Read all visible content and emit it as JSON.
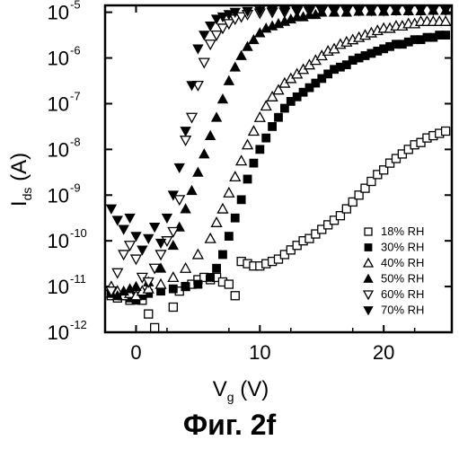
{
  "caption": "Фиг. 2f",
  "chart_data": {
    "type": "scatter",
    "title": "",
    "xlabel": "V",
    "xlabel_sub": "g",
    "xlabel_unit": " (V)",
    "ylabel": "I",
    "ylabel_sub": "ds",
    "ylabel_unit": " (A)",
    "xlim": [
      -2.5,
      25.5
    ],
    "ylim_log10": [
      -12,
      -4.85
    ],
    "y_scale": "log",
    "x_ticks": [
      0,
      10,
      20
    ],
    "x_tick_labels": [
      "0",
      "10",
      "20"
    ],
    "y_tick_exponents": [
      -5,
      -6,
      -7,
      -8,
      -9,
      -10,
      -11,
      -12
    ],
    "y_tick_labels": [
      {
        "base": "10",
        "exp": "-5"
      },
      {
        "base": "10",
        "exp": "-6"
      },
      {
        "base": "10",
        "exp": "-7"
      },
      {
        "base": "10",
        "exp": "-8"
      },
      {
        "base": "10",
        "exp": "-9"
      },
      {
        "base": "10",
        "exp": "-10"
      },
      {
        "base": "10",
        "exp": "-11"
      },
      {
        "base": "10",
        "exp": "-12"
      }
    ],
    "legend_position": "bottom-right",
    "series": [
      {
        "name": "18% RH",
        "marker": "square-open",
        "points": [
          [
            -2,
            -11.2
          ],
          [
            -1.5,
            -11.25
          ],
          [
            -1,
            -11.2
          ],
          [
            -0.5,
            -11.3
          ],
          [
            0,
            -11.25
          ],
          [
            0.5,
            -11.3
          ],
          [
            1,
            -11.6
          ],
          [
            1.5,
            -11.9
          ],
          [
            2,
            -12.2
          ],
          [
            3,
            -11.45
          ],
          [
            3.5,
            -11.1
          ],
          [
            4,
            -11.0
          ],
          [
            4.5,
            -10.95
          ],
          [
            5,
            -10.85
          ],
          [
            5.5,
            -10.8
          ],
          [
            6,
            -10.85
          ],
          [
            6.5,
            -10.8
          ],
          [
            7,
            -10.9
          ],
          [
            7.5,
            -10.95
          ],
          [
            8,
            -11.2
          ],
          [
            8.5,
            -10.45
          ],
          [
            9,
            -10.5
          ],
          [
            9.5,
            -10.55
          ],
          [
            10,
            -10.55
          ],
          [
            10.5,
            -10.5
          ],
          [
            11,
            -10.45
          ],
          [
            11.5,
            -10.4
          ],
          [
            12,
            -10.3
          ],
          [
            12.5,
            -10.2
          ],
          [
            13,
            -10.1
          ],
          [
            13.5,
            -10.0
          ],
          [
            14,
            -9.95
          ],
          [
            14.5,
            -9.85
          ],
          [
            15,
            -9.75
          ],
          [
            15.5,
            -9.65
          ],
          [
            16,
            -9.55
          ],
          [
            16.5,
            -9.45
          ],
          [
            17,
            -9.3
          ],
          [
            17.5,
            -9.15
          ],
          [
            18,
            -9.0
          ],
          [
            18.5,
            -8.85
          ],
          [
            19,
            -8.7
          ],
          [
            19.5,
            -8.55
          ],
          [
            20,
            -8.45
          ],
          [
            20.5,
            -8.3
          ],
          [
            21,
            -8.2
          ],
          [
            21.5,
            -8.1
          ],
          [
            22,
            -8.0
          ],
          [
            22.5,
            -7.9
          ],
          [
            23,
            -7.85
          ],
          [
            23.5,
            -7.75
          ],
          [
            24,
            -7.7
          ],
          [
            24.5,
            -7.65
          ],
          [
            25,
            -7.6
          ]
        ]
      },
      {
        "name": "30% RH",
        "marker": "square-filled",
        "points": [
          [
            -2,
            -11.1
          ],
          [
            -1.5,
            -11.2
          ],
          [
            -1,
            -11.2
          ],
          [
            -0.5,
            -11.25
          ],
          [
            0,
            -11.3
          ],
          [
            0.5,
            -11.2
          ],
          [
            1,
            -11.15
          ],
          [
            2,
            -11.1
          ],
          [
            3,
            -11.05
          ],
          [
            4,
            -11.0
          ],
          [
            5,
            -10.95
          ],
          [
            6,
            -10.8
          ],
          [
            6.5,
            -10.6
          ],
          [
            7,
            -10.3
          ],
          [
            7.5,
            -9.9
          ],
          [
            8,
            -9.5
          ],
          [
            8.5,
            -9.1
          ],
          [
            9,
            -8.65
          ],
          [
            9.5,
            -8.3
          ],
          [
            10,
            -8.0
          ],
          [
            10.5,
            -7.75
          ],
          [
            11,
            -7.5
          ],
          [
            11.5,
            -7.3
          ],
          [
            12,
            -7.1
          ],
          [
            12.5,
            -6.95
          ],
          [
            13,
            -6.85
          ],
          [
            13.5,
            -6.75
          ],
          [
            14,
            -6.65
          ],
          [
            14.5,
            -6.55
          ],
          [
            15,
            -6.45
          ],
          [
            15.5,
            -6.35
          ],
          [
            16,
            -6.25
          ],
          [
            16.5,
            -6.2
          ],
          [
            17,
            -6.15
          ],
          [
            17.5,
            -6.05
          ],
          [
            18,
            -6.0
          ],
          [
            18.5,
            -5.95
          ],
          [
            19,
            -5.9
          ],
          [
            19.5,
            -5.85
          ],
          [
            20,
            -5.8
          ],
          [
            20.5,
            -5.75
          ],
          [
            21,
            -5.7
          ],
          [
            21.5,
            -5.7
          ],
          [
            22,
            -5.65
          ],
          [
            22.5,
            -5.6
          ],
          [
            23,
            -5.6
          ],
          [
            23.5,
            -5.55
          ],
          [
            24,
            -5.55
          ],
          [
            24.5,
            -5.5
          ],
          [
            25,
            -5.5
          ]
        ]
      },
      {
        "name": "40% RH",
        "marker": "triangle-up-open",
        "points": [
          [
            -2,
            -11.0
          ],
          [
            -1.5,
            -11.1
          ],
          [
            -1,
            -11.2
          ],
          [
            -0.5,
            -11.15
          ],
          [
            0,
            -11.2
          ],
          [
            0.5,
            -11.1
          ],
          [
            1,
            -11.05
          ],
          [
            2,
            -10.95
          ],
          [
            3,
            -10.8
          ],
          [
            4,
            -10.6
          ],
          [
            5,
            -10.3
          ],
          [
            6,
            -9.95
          ],
          [
            6.5,
            -9.6
          ],
          [
            7,
            -9.3
          ],
          [
            7.5,
            -8.95
          ],
          [
            8,
            -8.6
          ],
          [
            8.5,
            -8.25
          ],
          [
            9,
            -7.9
          ],
          [
            9.5,
            -7.6
          ],
          [
            10,
            -7.3
          ],
          [
            10.5,
            -7.05
          ],
          [
            11,
            -6.85
          ],
          [
            11.5,
            -6.7
          ],
          [
            12,
            -6.55
          ],
          [
            12.5,
            -6.45
          ],
          [
            13,
            -6.35
          ],
          [
            13.5,
            -6.25
          ],
          [
            14,
            -6.15
          ],
          [
            14.5,
            -6.05
          ],
          [
            15,
            -5.95
          ],
          [
            15.5,
            -5.85
          ],
          [
            16,
            -5.8
          ],
          [
            16.5,
            -5.7
          ],
          [
            17,
            -5.65
          ],
          [
            17.5,
            -5.6
          ],
          [
            18,
            -5.55
          ],
          [
            18.5,
            -5.5
          ],
          [
            19,
            -5.45
          ],
          [
            19.5,
            -5.4
          ],
          [
            20,
            -5.35
          ],
          [
            20.5,
            -5.35
          ],
          [
            21,
            -5.3
          ],
          [
            21.5,
            -5.3
          ],
          [
            22,
            -5.25
          ],
          [
            22.5,
            -5.25
          ],
          [
            23,
            -5.2
          ],
          [
            23.5,
            -5.2
          ],
          [
            24,
            -5.2
          ],
          [
            24.5,
            -5.2
          ],
          [
            25,
            -5.2
          ]
        ]
      },
      {
        "name": "50% RH",
        "marker": "triangle-up-filled",
        "points": [
          [
            -2,
            -11.15
          ],
          [
            -1.5,
            -11.2
          ],
          [
            -1,
            -11.1
          ],
          [
            -0.5,
            -11.05
          ],
          [
            0,
            -11.0
          ],
          [
            1,
            -10.9
          ],
          [
            2,
            -10.6
          ],
          [
            3,
            -10.1
          ],
          [
            3.5,
            -9.7
          ],
          [
            4,
            -9.3
          ],
          [
            4.5,
            -8.9
          ],
          [
            5,
            -8.5
          ],
          [
            5.5,
            -8.1
          ],
          [
            6,
            -7.7
          ],
          [
            6.5,
            -7.3
          ],
          [
            7,
            -6.9
          ],
          [
            7.5,
            -6.5
          ],
          [
            8,
            -6.2
          ],
          [
            8.5,
            -5.95
          ],
          [
            9,
            -5.75
          ],
          [
            9.5,
            -5.6
          ],
          [
            10,
            -5.45
          ],
          [
            10.5,
            -5.35
          ],
          [
            11,
            -5.3
          ],
          [
            11.5,
            -5.25
          ],
          [
            12,
            -5.2
          ],
          [
            12.5,
            -5.15
          ],
          [
            13,
            -5.1
          ],
          [
            13.5,
            -5.1
          ],
          [
            14,
            -5.05
          ],
          [
            14.5,
            -5.05
          ],
          [
            15,
            -5.0
          ],
          [
            16,
            -5.0
          ],
          [
            17,
            -5.0
          ],
          [
            18,
            -4.98
          ],
          [
            19,
            -4.98
          ],
          [
            20,
            -4.98
          ],
          [
            21,
            -4.97
          ],
          [
            22,
            -4.97
          ],
          [
            23,
            -4.97
          ],
          [
            24,
            -4.96
          ],
          [
            25,
            -4.96
          ]
        ]
      },
      {
        "name": "60% RH",
        "marker": "triangle-down-open",
        "points": [
          [
            -2,
            -11.1
          ],
          [
            -1.5,
            -10.7
          ],
          [
            -1,
            -10.3
          ],
          [
            -0.5,
            -10.1
          ],
          [
            0,
            -10.4
          ],
          [
            0.5,
            -10.8
          ],
          [
            1,
            -10.9
          ],
          [
            1.5,
            -10.6
          ],
          [
            2,
            -10.3
          ],
          [
            2.5,
            -10.0
          ],
          [
            3,
            -9.8
          ],
          [
            3.5,
            -9.1
          ],
          [
            4,
            -7.8
          ],
          [
            4.5,
            -7.3
          ],
          [
            5,
            -6.6
          ],
          [
            5.5,
            -6.1
          ],
          [
            6,
            -5.7
          ],
          [
            6.5,
            -5.5
          ],
          [
            7,
            -5.35
          ],
          [
            7.5,
            -5.25
          ],
          [
            8,
            -5.15
          ],
          [
            8.5,
            -5.1
          ],
          [
            9,
            -5.05
          ],
          [
            10,
            -5.02
          ],
          [
            11,
            -5.0
          ],
          [
            12,
            -5.0
          ],
          [
            13,
            -4.98
          ],
          [
            14,
            -4.98
          ],
          [
            15,
            -4.97
          ],
          [
            16,
            -4.97
          ],
          [
            17,
            -4.97
          ],
          [
            18,
            -4.96
          ],
          [
            19,
            -4.96
          ],
          [
            20,
            -4.96
          ],
          [
            21,
            -4.95
          ],
          [
            22,
            -4.95
          ],
          [
            23,
            -4.95
          ],
          [
            24,
            -4.95
          ],
          [
            25,
            -4.95
          ]
        ]
      },
      {
        "name": "70% RH",
        "marker": "triangle-down-filled",
        "points": [
          [
            -2,
            -9.3
          ],
          [
            -1.5,
            -9.55
          ],
          [
            -1,
            -9.75
          ],
          [
            -0.5,
            -9.5
          ],
          [
            0,
            -9.9
          ],
          [
            0.5,
            -10.2
          ],
          [
            1,
            -9.95
          ],
          [
            1.5,
            -9.7
          ],
          [
            2,
            -10.05
          ],
          [
            2.5,
            -9.5
          ],
          [
            3,
            -9.0
          ],
          [
            3.5,
            -8.4
          ],
          [
            4,
            -7.6
          ],
          [
            4.5,
            -6.6
          ],
          [
            5,
            -5.8
          ],
          [
            5.5,
            -5.5
          ],
          [
            6,
            -5.3
          ],
          [
            6.5,
            -5.15
          ],
          [
            7,
            -5.1
          ],
          [
            7.5,
            -5.05
          ],
          [
            8,
            -5.0
          ],
          [
            9,
            -4.98
          ],
          [
            10,
            -4.97
          ],
          [
            11,
            -4.96
          ],
          [
            12,
            -4.96
          ],
          [
            13,
            -4.95
          ],
          [
            14,
            -4.95
          ],
          [
            15,
            -4.95
          ],
          [
            16,
            -4.95
          ],
          [
            17,
            -4.94
          ],
          [
            18,
            -4.94
          ],
          [
            19,
            -4.94
          ],
          [
            20,
            -4.94
          ],
          [
            21,
            -4.94
          ],
          [
            22,
            -4.94
          ],
          [
            23,
            -4.94
          ],
          [
            24,
            -4.94
          ],
          [
            25,
            -4.94
          ]
        ]
      }
    ]
  }
}
